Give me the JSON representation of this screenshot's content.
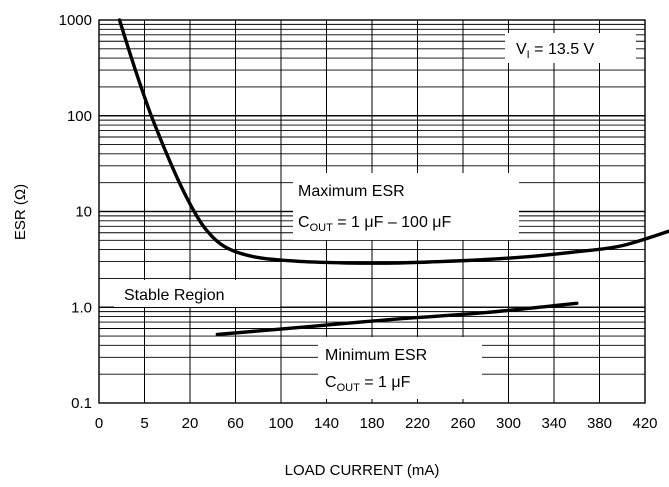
{
  "chart_data": {
    "type": "line",
    "title": "",
    "xlabel": "LOAD CURRENT (mA)",
    "ylabel": "ESR (Ω)",
    "x_ticks": [
      "0",
      "5",
      "20",
      "60",
      "100",
      "140",
      "180",
      "220",
      "260",
      "300",
      "340",
      "380",
      "420"
    ],
    "y_ticks": [
      "1000",
      "100",
      "10",
      "1.0",
      "0.1"
    ],
    "y_scale": "log",
    "ylim": [
      0.1,
      1000
    ],
    "grid": true,
    "series": [
      {
        "name": "Maximum ESR",
        "x_tick_position": [
          0.45,
          0.8,
          1.15,
          1.6,
          2.0,
          2.35,
          2.8,
          3.5,
          4.5,
          5.5,
          6.5,
          7.5,
          8.5,
          9.5,
          10.5,
          11.5,
          12.6
        ],
        "values": [
          1000,
          300,
          100,
          30,
          12,
          6.5,
          4.2,
          3.3,
          3.0,
          2.9,
          2.9,
          3.0,
          3.15,
          3.4,
          3.8,
          4.4,
          6.4
        ]
      },
      {
        "name": "Minimum ESR",
        "x_tick_position": [
          2.6,
          4.5,
          6.5,
          8.5,
          10.5
        ],
        "values": [
          0.52,
          0.62,
          0.75,
          0.88,
          1.1
        ]
      }
    ],
    "annotations": {
      "vi": {
        "main": "V",
        "sub": "I",
        "rest": " = 13.5 V"
      },
      "max_esr": {
        "line1": "Maximum ESR",
        "line2_main": "C",
        "line2_sub": "OUT",
        "line2_rest": " = 1 μF – 100 μF"
      },
      "min_esr": {
        "line1": "Minimum ESR",
        "line2_main": "C",
        "line2_sub": "OUT",
        "line2_rest": " = 1 μF"
      },
      "stable_region": "Stable Region"
    }
  }
}
